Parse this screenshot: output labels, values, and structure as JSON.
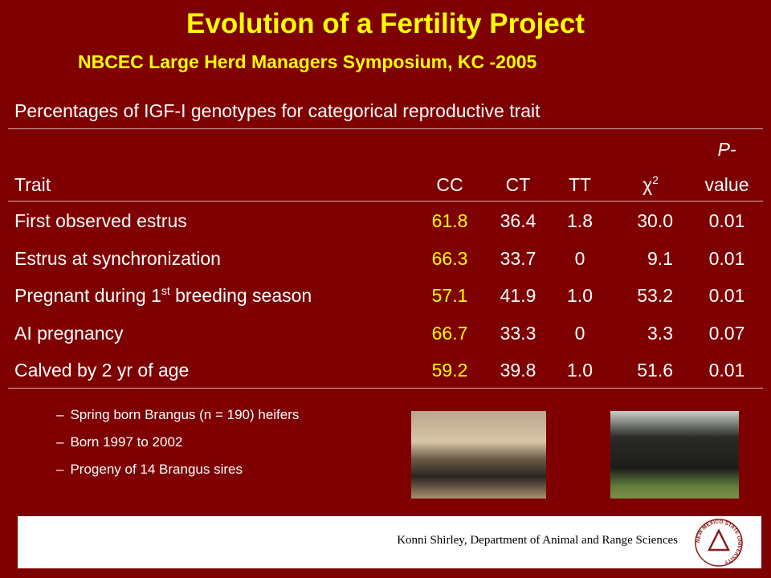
{
  "header": {
    "title": "Evolution of a Fertility Project",
    "subtitle": "NBCEC Large Herd Managers Symposium, KC -2005"
  },
  "table": {
    "caption": "Percentages of IGF-I genotypes for categorical reproductive trait",
    "columns": [
      {
        "text": "Trait"
      },
      {
        "text": "CC"
      },
      {
        "text": "CT"
      },
      {
        "text": "TT"
      },
      {
        "text": "χ",
        "sup": "2"
      },
      {
        "top": "P-",
        "text": "value"
      }
    ],
    "rows": [
      [
        {
          "text": "First observed estrus"
        },
        "61.8",
        "36.4",
        "1.8",
        "30.0",
        "0.01"
      ],
      [
        {
          "text": "Estrus at synchronization"
        },
        "66.3",
        "33.7",
        "0",
        "9.1",
        "0.01"
      ],
      [
        {
          "text": "Pregnant during 1",
          "sup": "st",
          "rest": " breeding season"
        },
        "57.1",
        "41.9",
        "1.0",
        "53.2",
        "0.01"
      ],
      [
        {
          "text": "AI pregnancy"
        },
        "66.7",
        "33.3",
        "0",
        "3.3",
        "0.07"
      ],
      [
        {
          "text": "Calved by 2 yr of age"
        },
        "59.2",
        "39.8",
        "1.0",
        "51.6",
        "0.01"
      ]
    ]
  },
  "bullets": [
    "Spring born Brangus (n = 190) heifers",
    "Born 1997 to 2002",
    "Progeny of 14 Brangus sires"
  ],
  "footer": {
    "text": "Konni Shirley, Department of Animal and Range Sciences",
    "logo": "NEW MEXICO STATE UNIVERSITY"
  }
}
